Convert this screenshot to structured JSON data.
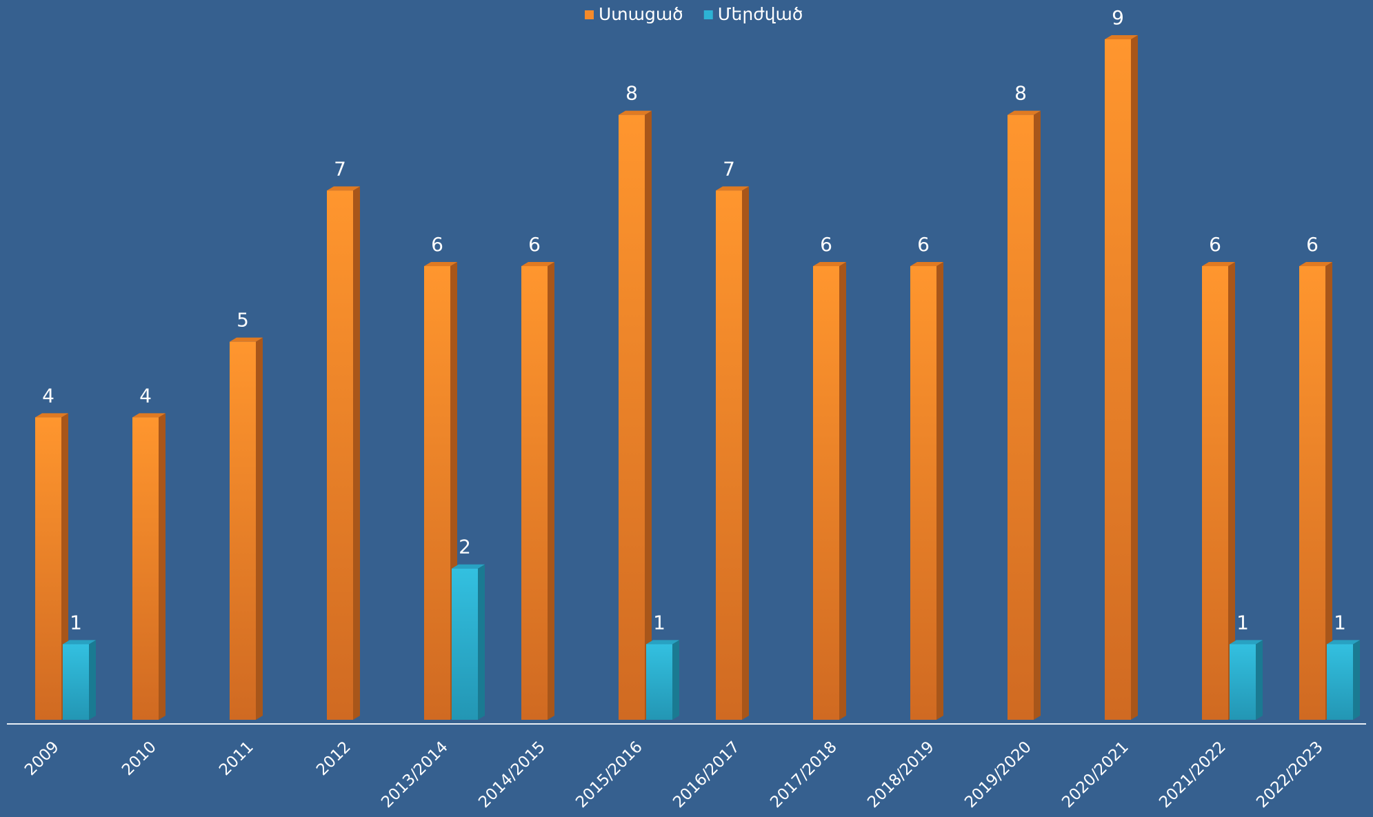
{
  "chart_data": {
    "type": "bar",
    "categories": [
      "2009",
      "2010",
      "2011",
      "2012",
      "2013/2014",
      "2014/2015",
      "2015/2016",
      "2016/2017",
      "2017/2018",
      "2018/2019",
      "2019/2020",
      "2020/2021",
      "2021/2022",
      "2022/2023"
    ],
    "series": [
      {
        "name": "Ստացած",
        "color": "#f48a2a",
        "values": [
          4,
          4,
          5,
          7,
          6,
          6,
          8,
          7,
          6,
          6,
          8,
          9,
          6,
          6
        ]
      },
      {
        "name": "Մերժված",
        "color": "#2db3d4",
        "values": [
          1,
          null,
          null,
          null,
          2,
          null,
          1,
          null,
          null,
          null,
          null,
          null,
          1,
          1
        ]
      }
    ],
    "legend": "top"
  }
}
